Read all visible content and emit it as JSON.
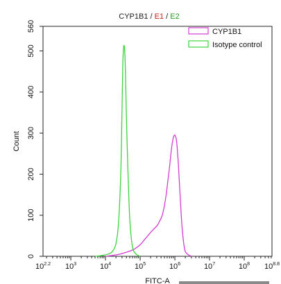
{
  "chart_data": {
    "type": "line",
    "title": {
      "parts": [
        {
          "text": "CYP1B1",
          "color": "#222222"
        },
        {
          "text": " / ",
          "color": "#222222"
        },
        {
          "text": "E1",
          "color": "#cc2020"
        },
        {
          "text": " / ",
          "color": "#222222"
        },
        {
          "text": "E2",
          "color": "#22a022"
        }
      ]
    },
    "xlabel": "FITC-A",
    "ylabel": "Count",
    "x_scale": "log",
    "xlim": [
      158,
      631000000
    ],
    "ylim": [
      0,
      560
    ],
    "x_ticks": [
      {
        "base": "10",
        "exp": "2.2",
        "value": 158
      },
      {
        "base": "10",
        "exp": "3",
        "value": 1000
      },
      {
        "base": "10",
        "exp": "4",
        "value": 10000
      },
      {
        "base": "10",
        "exp": "5",
        "value": 100000
      },
      {
        "base": "10",
        "exp": "6",
        "value": 1000000
      },
      {
        "base": "10",
        "exp": "7",
        "value": 10000000
      },
      {
        "base": "10",
        "exp": "8",
        "value": 100000000
      },
      {
        "base": "10",
        "exp": "8.8",
        "value": 631000000
      }
    ],
    "y_ticks": [
      "0",
      "100",
      "200",
      "300",
      "400",
      "500",
      "560"
    ],
    "legend_position": "top-right",
    "series": [
      {
        "name": "CYP1B1",
        "color": "#d23cd2",
        "points": [
          [
            10000,
            0
          ],
          [
            15849,
            2
          ],
          [
            25119,
            5
          ],
          [
            39811,
            10
          ],
          [
            63096,
            16
          ],
          [
            100000,
            28
          ],
          [
            125893,
            38
          ],
          [
            158489,
            48
          ],
          [
            199526,
            58
          ],
          [
            251189,
            67
          ],
          [
            316228,
            76
          ],
          [
            354813,
            84
          ],
          [
            398107,
            92
          ],
          [
            446684,
            104
          ],
          [
            501187,
            124
          ],
          [
            562341,
            150
          ],
          [
            630957,
            185
          ],
          [
            707946,
            220
          ],
          [
            794328,
            260
          ],
          [
            891251,
            287
          ],
          [
            1000000,
            295
          ],
          [
            1122018,
            280
          ],
          [
            1258925,
            225
          ],
          [
            1412538,
            150
          ],
          [
            1584893,
            80
          ],
          [
            1778279,
            35
          ],
          [
            1995262,
            12
          ],
          [
            2511886,
            3
          ],
          [
            3162278,
            0
          ]
        ]
      },
      {
        "name": "Isotype control",
        "color": "#3cd23c",
        "points": [
          [
            5012,
            0
          ],
          [
            7943,
            2
          ],
          [
            12589,
            6
          ],
          [
            15849,
            12
          ],
          [
            19953,
            30
          ],
          [
            23714,
            80
          ],
          [
            27542,
            200
          ],
          [
            29854,
            350
          ],
          [
            31623,
            470
          ],
          [
            33497,
            510
          ],
          [
            35481,
            505
          ],
          [
            37584,
            450
          ],
          [
            39811,
            350
          ],
          [
            44668,
            200
          ],
          [
            50119,
            90
          ],
          [
            56234,
            40
          ],
          [
            63096,
            15
          ],
          [
            79433,
            4
          ],
          [
            100000,
            0
          ]
        ]
      }
    ]
  }
}
